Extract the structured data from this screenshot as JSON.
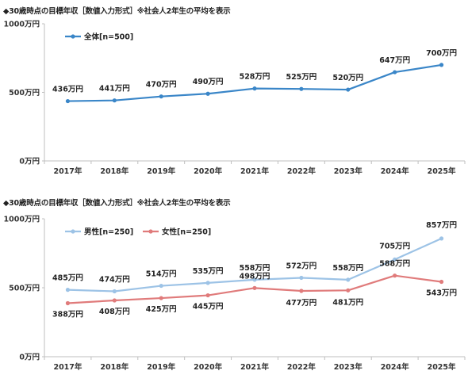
{
  "charts": [
    {
      "title": "◆30歳時点の目標年収［数値入力形式］※社会人2年生の平均を表示"
    },
    {
      "title": "◆30歳時点の目標年収［数値入力形式］※社会人2年生の平均を表示"
    }
  ],
  "chart_data": [
    {
      "type": "line",
      "title": "◆30歳時点の目標年収［数値入力形式］※社会人2年生の平均を表示",
      "categories": [
        "2017年",
        "2018年",
        "2019年",
        "2020年",
        "2021年",
        "2022年",
        "2023年",
        "2024年",
        "2025年"
      ],
      "y_ticks": [
        "0万円",
        "500万円",
        "1000万円"
      ],
      "ylim": [
        0,
        1000
      ],
      "legend_position": "top-left",
      "series": [
        {
          "name": "全体[n=500]",
          "color": "#3a86c8",
          "values": [
            436,
            441,
            470,
            490,
            528,
            525,
            520,
            647,
            700
          ],
          "labels": [
            "436万円",
            "441万円",
            "470万円",
            "490万円",
            "528万円",
            "525万円",
            "520万円",
            "647万円",
            "700万円"
          ]
        }
      ]
    },
    {
      "type": "line",
      "title": "◆30歳時点の目標年収［数値入力形式］※社会人2年生の平均を表示",
      "categories": [
        "2017年",
        "2018年",
        "2019年",
        "2020年",
        "2021年",
        "2022年",
        "2023年",
        "2024年",
        "2025年"
      ],
      "y_ticks": [
        "0万円",
        "500万円",
        "1000万円"
      ],
      "ylim": [
        0,
        1000
      ],
      "legend_position": "top-left",
      "series": [
        {
          "name": "男性[n=250]",
          "color": "#9dc3e6",
          "values": [
            485,
            474,
            514,
            535,
            558,
            572,
            558,
            705,
            857
          ],
          "labels": [
            "485万円",
            "474万円",
            "514万円",
            "535万円",
            "558万円",
            "572万円",
            "558万円",
            "705万円",
            "857万円"
          ]
        },
        {
          "name": "女性[n=250]",
          "color": "#e07b7b",
          "values": [
            388,
            408,
            425,
            445,
            498,
            477,
            481,
            588,
            543
          ],
          "labels": [
            "388万円",
            "408万円",
            "425万円",
            "445万円",
            "498万円",
            "477万円",
            "481万円",
            "588万円",
            "543万円"
          ]
        }
      ]
    }
  ]
}
